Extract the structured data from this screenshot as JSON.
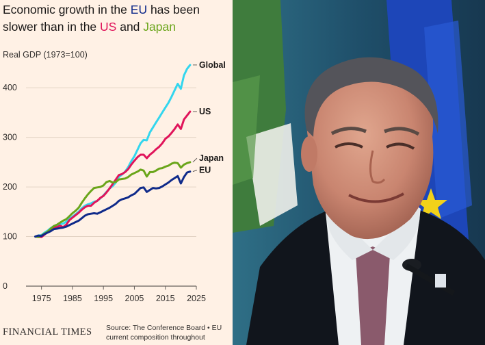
{
  "headline": {
    "part1": "Economic growth in the ",
    "eu": "EU",
    "part2": " has been slower than in the ",
    "us": "US",
    "part3": " and ",
    "japan": "Japan"
  },
  "footer": {
    "logo": "FINANCIAL TIMES",
    "source_line1": "Source: The Conference Board • EU",
    "source_line2": "current composition throughout"
  },
  "colors": {
    "background": "#fff1e5",
    "global": "#33d6ee",
    "us": "#e0145a",
    "japan": "#6aa51a",
    "eu": "#0f2a8a"
  },
  "chart_data": {
    "type": "line",
    "title": "Economic growth in the EU has been slower than in the US and Japan",
    "ylabel": "Real GDP (1973=100)",
    "xlabel": "",
    "xlim": [
      1970,
      2025
    ],
    "ylim": [
      0,
      450
    ],
    "yticks": [
      0,
      100,
      200,
      300,
      400
    ],
    "xticks": [
      1975,
      1985,
      1995,
      2005,
      2015,
      2025
    ],
    "grid": "horizontal",
    "legend": "direct labels at line ends",
    "series": [
      {
        "name": "Global",
        "color": "#33d6ee",
        "x": [
          1973,
          1974,
          1975,
          1976,
          1977,
          1978,
          1979,
          1980,
          1981,
          1982,
          1983,
          1984,
          1985,
          1986,
          1987,
          1988,
          1989,
          1990,
          1991,
          1992,
          1993,
          1994,
          1995,
          1996,
          1997,
          1998,
          1999,
          2000,
          2001,
          2002,
          2003,
          2004,
          2005,
          2006,
          2007,
          2008,
          2009,
          2010,
          2011,
          2012,
          2013,
          2014,
          2015,
          2016,
          2017,
          2018,
          2019,
          2020,
          2021,
          2022,
          2023
        ],
        "y": [
          100,
          102,
          103,
          108,
          112,
          117,
          121,
          123,
          125,
          126,
          130,
          136,
          140,
          145,
          150,
          157,
          162,
          165,
          167,
          170,
          172,
          177,
          183,
          190,
          197,
          202,
          209,
          220,
          225,
          231,
          240,
          252,
          262,
          275,
          288,
          295,
          294,
          310,
          320,
          330,
          340,
          350,
          360,
          370,
          382,
          395,
          408,
          398,
          425,
          438,
          446
        ]
      },
      {
        "name": "US",
        "color": "#e0145a",
        "x": [
          1973,
          1974,
          1975,
          1976,
          1977,
          1978,
          1979,
          1980,
          1981,
          1982,
          1983,
          1984,
          1985,
          1986,
          1987,
          1988,
          1989,
          1990,
          1991,
          1992,
          1993,
          1994,
          1995,
          1996,
          1997,
          1998,
          1999,
          2000,
          2001,
          2002,
          2003,
          2004,
          2005,
          2006,
          2007,
          2008,
          2009,
          2010,
          2011,
          2012,
          2013,
          2014,
          2015,
          2016,
          2017,
          2018,
          2019,
          2020,
          2021,
          2022,
          2023
        ],
        "y": [
          100,
          99,
          99,
          104,
          109,
          115,
          119,
          119,
          122,
          119,
          124,
          133,
          138,
          143,
          148,
          154,
          159,
          162,
          162,
          168,
          172,
          178,
          182,
          189,
          197,
          206,
          215,
          224,
          226,
          230,
          236,
          245,
          253,
          260,
          265,
          265,
          258,
          265,
          270,
          276,
          281,
          288,
          297,
          302,
          309,
          317,
          326,
          317,
          336,
          344,
          352
        ]
      },
      {
        "name": "Japan",
        "color": "#6aa51a",
        "x": [
          1973,
          1974,
          1975,
          1976,
          1977,
          1978,
          1979,
          1980,
          1981,
          1982,
          1983,
          1984,
          1985,
          1986,
          1987,
          1988,
          1989,
          1990,
          1991,
          1992,
          1993,
          1994,
          1995,
          1996,
          1997,
          1998,
          1999,
          2000,
          2001,
          2002,
          2003,
          2004,
          2005,
          2006,
          2007,
          2008,
          2009,
          2010,
          2011,
          2012,
          2013,
          2014,
          2015,
          2016,
          2017,
          2018,
          2019,
          2020,
          2021,
          2022,
          2023
        ],
        "y": [
          100,
          99,
          102,
          106,
          110,
          116,
          121,
          124,
          128,
          132,
          135,
          141,
          147,
          152,
          158,
          168,
          177,
          185,
          192,
          198,
          199,
          200,
          203,
          210,
          212,
          209,
          210,
          215,
          216,
          217,
          220,
          225,
          228,
          231,
          235,
          233,
          221,
          230,
          230,
          233,
          237,
          238,
          241,
          243,
          247,
          249,
          248,
          239,
          245,
          248,
          250
        ]
      },
      {
        "name": "EU",
        "color": "#0f2a8a",
        "x": [
          1973,
          1974,
          1975,
          1976,
          1977,
          1978,
          1979,
          1980,
          1981,
          1982,
          1983,
          1984,
          1985,
          1986,
          1987,
          1988,
          1989,
          1990,
          1991,
          1992,
          1993,
          1994,
          1995,
          1996,
          1997,
          1998,
          1999,
          2000,
          2001,
          2002,
          2003,
          2004,
          2005,
          2006,
          2007,
          2008,
          2009,
          2010,
          2011,
          2012,
          2013,
          2014,
          2015,
          2016,
          2017,
          2018,
          2019,
          2020,
          2021,
          2022,
          2023
        ],
        "y": [
          100,
          102,
          101,
          105,
          108,
          111,
          115,
          116,
          117,
          118,
          120,
          123,
          126,
          129,
          132,
          137,
          142,
          145,
          146,
          147,
          146,
          149,
          152,
          155,
          158,
          162,
          166,
          172,
          175,
          177,
          179,
          183,
          186,
          192,
          198,
          199,
          190,
          194,
          198,
          197,
          198,
          201,
          205,
          209,
          214,
          218,
          222,
          207,
          220,
          229,
          231
        ]
      }
    ]
  }
}
